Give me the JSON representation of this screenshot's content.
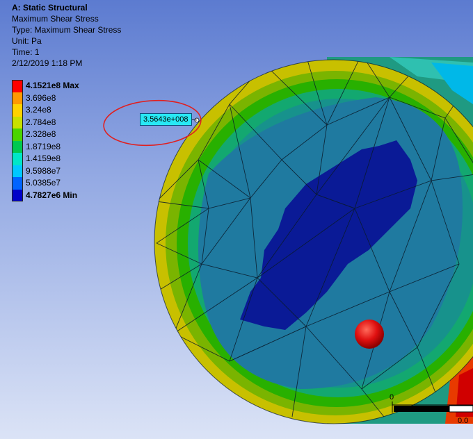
{
  "info": {
    "title": "A: Static Structural",
    "result_name": "Maximum Shear Stress",
    "type_line": "Type: Maximum Shear Stress",
    "unit_line": "Unit: Pa",
    "time_line": "Time: 1",
    "date_line": "2/12/2019 1:18 PM"
  },
  "legend": {
    "entries": [
      {
        "label": "4.1521e8 Max",
        "color": "#ff0000"
      },
      {
        "label": "3.696e8",
        "color": "#ff9900"
      },
      {
        "label": "3.24e8",
        "color": "#ffd200"
      },
      {
        "label": "2.784e8",
        "color": "#c8e000"
      },
      {
        "label": "2.328e8",
        "color": "#4ad400"
      },
      {
        "label": "1.8719e8",
        "color": "#00c850"
      },
      {
        "label": "1.4159e8",
        "color": "#00e6c8"
      },
      {
        "label": "9.5988e7",
        "color": "#00c8ff"
      },
      {
        "label": "5.0385e7",
        "color": "#0064ff"
      },
      {
        "label": "4.7827e6 Min",
        "color": "#0000c8"
      }
    ]
  },
  "probe": {
    "value": "3.5643e+008"
  },
  "scale": {
    "start": "0",
    "end": "0.0"
  },
  "colors": {
    "annotation_circle": "#e02020",
    "marker": "#e01010",
    "background_top": "#5c7bd0",
    "background_bottom": "#dbe3f6"
  }
}
